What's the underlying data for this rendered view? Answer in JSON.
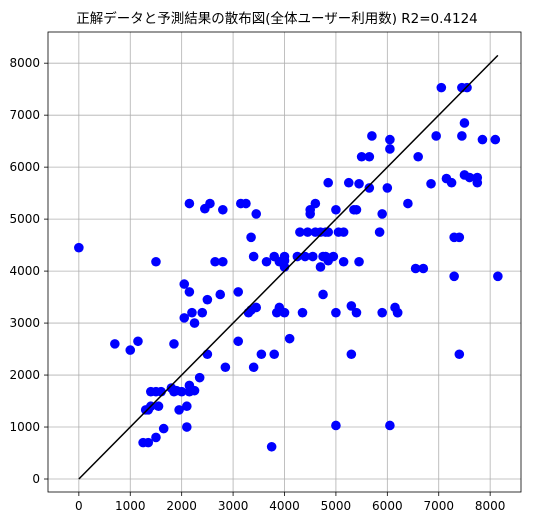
{
  "chart_data": {
    "type": "scatter",
    "title": "正解データと予測結果の散布図(全体ユーザー利用数)  R2=0.4124",
    "xlabel": "",
    "ylabel": "",
    "xlim": [
      -600,
      8600
    ],
    "ylim": [
      -250,
      8600
    ],
    "grid": true,
    "x_ticks": [
      0,
      1000,
      2000,
      3000,
      4000,
      5000,
      6000,
      7000,
      8000
    ],
    "y_ticks": [
      0,
      1000,
      2000,
      3000,
      4000,
      5000,
      6000,
      7000,
      8000
    ],
    "x_tick_labels": [
      "0",
      "1000",
      "2000",
      "3000",
      "4000",
      "5000",
      "6000",
      "7000",
      "8000"
    ],
    "y_tick_labels": [
      "0",
      "1000",
      "2000",
      "3000",
      "4000",
      "5000",
      "6000",
      "7000",
      "8000"
    ],
    "point_color": "#0000ff",
    "line_color": "#000000",
    "reference_line": {
      "x": [
        0,
        8150
      ],
      "y": [
        0,
        8150
      ]
    },
    "points": [
      [
        0,
        4450
      ],
      [
        700,
        2600
      ],
      [
        1000,
        2480
      ],
      [
        1150,
        2650
      ],
      [
        1250,
        700
      ],
      [
        1350,
        700
      ],
      [
        1300,
        1330
      ],
      [
        1350,
        1330
      ],
      [
        1400,
        1400
      ],
      [
        1400,
        1680
      ],
      [
        1500,
        1680
      ],
      [
        1500,
        4180
      ],
      [
        1500,
        800
      ],
      [
        1550,
        1400
      ],
      [
        1600,
        1680
      ],
      [
        1650,
        970
      ],
      [
        1800,
        1750
      ],
      [
        1850,
        1680
      ],
      [
        1850,
        2600
      ],
      [
        1900,
        1700
      ],
      [
        1950,
        1330
      ],
      [
        2000,
        1680
      ],
      [
        2050,
        3750
      ],
      [
        2050,
        3100
      ],
      [
        2100,
        1000
      ],
      [
        2100,
        1400
      ],
      [
        2150,
        1680
      ],
      [
        2150,
        1800
      ],
      [
        2150,
        3600
      ],
      [
        2150,
        5300
      ],
      [
        2200,
        3200
      ],
      [
        2250,
        3000
      ],
      [
        2250,
        1700
      ],
      [
        2350,
        1950
      ],
      [
        2400,
        3200
      ],
      [
        2450,
        5200
      ],
      [
        2500,
        3450
      ],
      [
        2500,
        2400
      ],
      [
        2550,
        5300
      ],
      [
        2650,
        4180
      ],
      [
        2750,
        3550
      ],
      [
        2800,
        5180
      ],
      [
        2800,
        4180
      ],
      [
        2850,
        2150
      ],
      [
        3100,
        2650
      ],
      [
        3100,
        3600
      ],
      [
        3150,
        5300
      ],
      [
        3250,
        5300
      ],
      [
        3300,
        3200
      ],
      [
        3350,
        4650
      ],
      [
        3350,
        3250
      ],
      [
        3400,
        2150
      ],
      [
        3400,
        4280
      ],
      [
        3450,
        3300
      ],
      [
        3450,
        5100
      ],
      [
        3550,
        2400
      ],
      [
        3650,
        4180
      ],
      [
        3750,
        620
      ],
      [
        3800,
        2400
      ],
      [
        3800,
        4280
      ],
      [
        3850,
        3200
      ],
      [
        3900,
        3300
      ],
      [
        3900,
        4180
      ],
      [
        4000,
        4200
      ],
      [
        4000,
        4080
      ],
      [
        4000,
        4280
      ],
      [
        4000,
        3200
      ],
      [
        4100,
        2700
      ],
      [
        4250,
        4280
      ],
      [
        4300,
        4750
      ],
      [
        4350,
        3200
      ],
      [
        4400,
        4280
      ],
      [
        4450,
        4750
      ],
      [
        4500,
        5100
      ],
      [
        4500,
        5180
      ],
      [
        4550,
        4280
      ],
      [
        4600,
        4750
      ],
      [
        4600,
        5300
      ],
      [
        4700,
        4750
      ],
      [
        4700,
        4080
      ],
      [
        4750,
        3550
      ],
      [
        4750,
        4280
      ],
      [
        4800,
        4280
      ],
      [
        4800,
        4750
      ],
      [
        4850,
        4200
      ],
      [
        4850,
        4750
      ],
      [
        4850,
        5700
      ],
      [
        4950,
        4280
      ],
      [
        5000,
        3200
      ],
      [
        5000,
        5180
      ],
      [
        5000,
        1030
      ],
      [
        5050,
        4750
      ],
      [
        5150,
        4750
      ],
      [
        5150,
        4180
      ],
      [
        5250,
        5700
      ],
      [
        5300,
        3330
      ],
      [
        5300,
        2400
      ],
      [
        5350,
        5180
      ],
      [
        5400,
        3200
      ],
      [
        5400,
        5180
      ],
      [
        5450,
        5680
      ],
      [
        5450,
        4180
      ],
      [
        5500,
        6200
      ],
      [
        5650,
        5600
      ],
      [
        5650,
        6200
      ],
      [
        5700,
        6600
      ],
      [
        5850,
        4750
      ],
      [
        5900,
        3200
      ],
      [
        5900,
        5100
      ],
      [
        6000,
        5600
      ],
      [
        6050,
        6530
      ],
      [
        6050,
        6350
      ],
      [
        6050,
        1030
      ],
      [
        6150,
        3300
      ],
      [
        6200,
        3200
      ],
      [
        6200,
        3200
      ],
      [
        6400,
        5300
      ],
      [
        6550,
        4050
      ],
      [
        6600,
        6200
      ],
      [
        6700,
        4050
      ],
      [
        6850,
        5680
      ],
      [
        6950,
        6600
      ],
      [
        7050,
        7530
      ],
      [
        7150,
        5780
      ],
      [
        7250,
        5700
      ],
      [
        7300,
        3900
      ],
      [
        7300,
        4650
      ],
      [
        7400,
        2400
      ],
      [
        7400,
        4650
      ],
      [
        7450,
        6600
      ],
      [
        7450,
        7530
      ],
      [
        7500,
        6850
      ],
      [
        7500,
        5850
      ],
      [
        7550,
        7530
      ],
      [
        7600,
        5800
      ],
      [
        7750,
        5800
      ],
      [
        7750,
        5700
      ],
      [
        7850,
        6530
      ],
      [
        8100,
        6530
      ],
      [
        8150,
        3900
      ]
    ]
  }
}
